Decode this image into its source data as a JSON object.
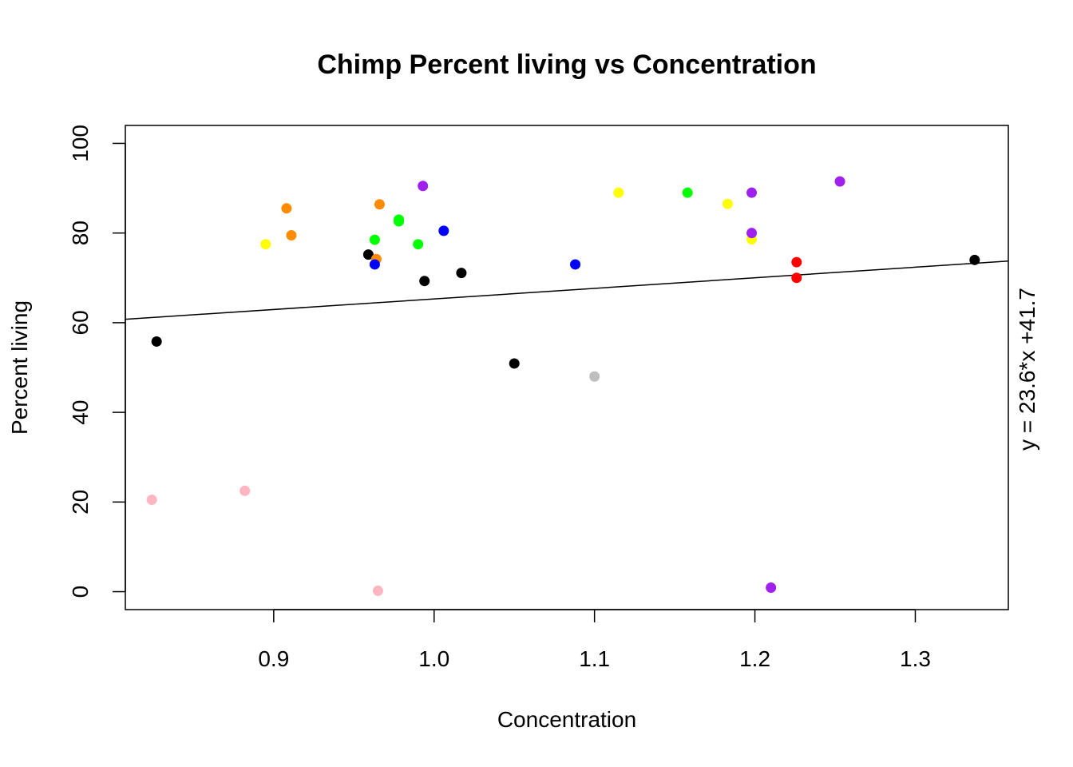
{
  "chart_data": {
    "type": "scatter",
    "title": "Chimp Percent living vs Concentration",
    "xlabel": "Concentration",
    "ylabel": "Percent living",
    "xlim": [
      0.8075,
      1.358
    ],
    "ylim": [
      -4,
      104
    ],
    "x_ticks": [
      0.9,
      1.0,
      1.1,
      1.2,
      1.3
    ],
    "x_tick_labels": [
      "0.9",
      "1.0",
      "1.1",
      "1.2",
      "1.3"
    ],
    "y_ticks": [
      0,
      20,
      40,
      60,
      80,
      100
    ],
    "y_tick_labels": [
      "0",
      "20",
      "40",
      "60",
      "80",
      "100"
    ],
    "grid": false,
    "regression": {
      "slope": 23.6,
      "intercept": 41.7,
      "label": "y = 23.6*x +41.7"
    },
    "points": [
      {
        "x": 0.827,
        "y": 55.8,
        "color": "#000000"
      },
      {
        "x": 0.959,
        "y": 75.2,
        "color": "#000000"
      },
      {
        "x": 0.994,
        "y": 69.3,
        "color": "#000000"
      },
      {
        "x": 1.017,
        "y": 71.1,
        "color": "#000000"
      },
      {
        "x": 1.05,
        "y": 50.9,
        "color": "#000000"
      },
      {
        "x": 1.337,
        "y": 74.0,
        "color": "#000000"
      },
      {
        "x": 0.908,
        "y": 85.5,
        "color": "#ff8c00"
      },
      {
        "x": 0.911,
        "y": 79.5,
        "color": "#ff8c00"
      },
      {
        "x": 0.966,
        "y": 86.4,
        "color": "#ff8c00"
      },
      {
        "x": 0.964,
        "y": 74.2,
        "color": "#ff8c00"
      },
      {
        "x": 0.895,
        "y": 77.5,
        "color": "#ffff00"
      },
      {
        "x": 1.115,
        "y": 89.0,
        "color": "#ffff00"
      },
      {
        "x": 1.183,
        "y": 86.5,
        "color": "#ffff00"
      },
      {
        "x": 1.198,
        "y": 78.6,
        "color": "#ffff00"
      },
      {
        "x": 0.963,
        "y": 78.5,
        "color": "#00ff00"
      },
      {
        "x": 0.978,
        "y": 83.0,
        "color": "#00ff00"
      },
      {
        "x": 0.978,
        "y": 82.6,
        "color": "#00ff00"
      },
      {
        "x": 0.99,
        "y": 77.5,
        "color": "#00ff00"
      },
      {
        "x": 1.158,
        "y": 89.0,
        "color": "#00ff00"
      },
      {
        "x": 0.963,
        "y": 73.0,
        "color": "#0000ff"
      },
      {
        "x": 1.006,
        "y": 80.5,
        "color": "#0000ff"
      },
      {
        "x": 1.088,
        "y": 73.0,
        "color": "#0000ff"
      },
      {
        "x": 0.993,
        "y": 90.5,
        "color": "#a020f0"
      },
      {
        "x": 1.198,
        "y": 89.0,
        "color": "#a020f0"
      },
      {
        "x": 1.198,
        "y": 80.0,
        "color": "#a020f0"
      },
      {
        "x": 1.253,
        "y": 91.5,
        "color": "#a020f0"
      },
      {
        "x": 1.21,
        "y": 0.9,
        "color": "#a020f0"
      },
      {
        "x": 1.226,
        "y": 73.5,
        "color": "#ff0000"
      },
      {
        "x": 1.226,
        "y": 70.0,
        "color": "#ff0000"
      },
      {
        "x": 1.1,
        "y": 48.0,
        "color": "#bebebe"
      },
      {
        "x": 0.824,
        "y": 20.5,
        "color": "#ffb6c1"
      },
      {
        "x": 0.882,
        "y": 22.5,
        "color": "#ffb6c1"
      },
      {
        "x": 0.965,
        "y": 0.2,
        "color": "#ffb6c1"
      }
    ]
  }
}
